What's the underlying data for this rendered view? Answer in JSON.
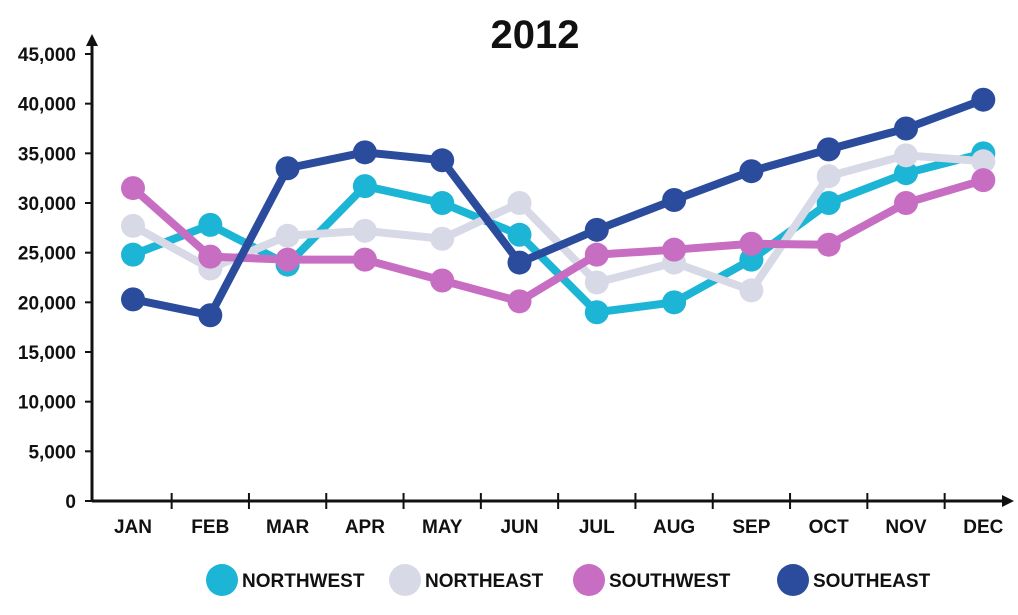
{
  "chart_data": {
    "type": "line",
    "title": "2012",
    "xlabel": "",
    "ylabel": "",
    "categories": [
      "JAN",
      "FEB",
      "MAR",
      "APR",
      "MAY",
      "JUN",
      "JUL",
      "AUG",
      "SEP",
      "OCT",
      "NOV",
      "DEC"
    ],
    "y_ticks": [
      "0",
      "5,000",
      "10,000",
      "15,000",
      "20,000",
      "25,000",
      "30,000",
      "35,000",
      "40,000",
      "45,000"
    ],
    "ylim": [
      0,
      45000
    ],
    "grid": false,
    "legend_position": "bottom",
    "series": [
      {
        "name": "NORTHWEST",
        "color": "#1CB5D5",
        "values": [
          24800,
          27800,
          23800,
          31700,
          30000,
          26800,
          19000,
          20000,
          24300,
          30000,
          33000,
          35000
        ]
      },
      {
        "name": "NORTHEAST",
        "color": "#D8D9E6",
        "values": [
          27700,
          23400,
          26700,
          27200,
          26400,
          30000,
          22000,
          24000,
          21200,
          32700,
          34800,
          34200
        ]
      },
      {
        "name": "SOUTHWEST",
        "color": "#C76EC3",
        "values": [
          31500,
          24600,
          24300,
          24300,
          22200,
          20100,
          24800,
          25300,
          25900,
          25800,
          30000,
          32300
        ]
      },
      {
        "name": "SOUTHEAST",
        "color": "#2B4C9C",
        "values": [
          20300,
          18700,
          33500,
          35100,
          34300,
          24000,
          27300,
          30300,
          33200,
          35400,
          37500,
          40400
        ]
      }
    ]
  }
}
